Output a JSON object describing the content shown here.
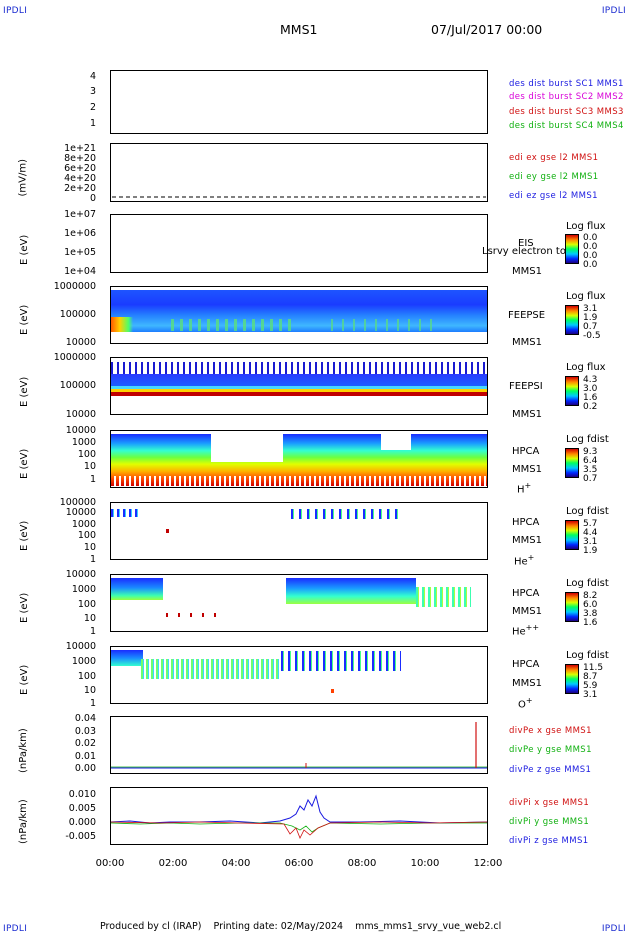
{
  "corner_label": "IPDLI",
  "header": {
    "mission": "MMS1",
    "datetime": "07/Jul/2017 00:00"
  },
  "footer": {
    "produced_by": "Produced by cl (IRAP)",
    "printing_date": "Printing date: 02/May/2024",
    "filename": "mms_mms1_srvy_vue_web2.cl"
  },
  "chart_data": [
    {
      "type": "line",
      "panel": "burst",
      "yticks": [
        "4",
        "3",
        "2",
        "1"
      ],
      "ylabel": "",
      "legend": [
        {
          "text": "des dist burst SC1 MMS1",
          "color": "#1a1ae0"
        },
        {
          "text": "des dist burst SC2 MMS2",
          "color": "#d800d8"
        },
        {
          "text": "des dist burst SC3 MMS3",
          "color": "#d01010"
        },
        {
          "text": "des dist burst SC4 MMS4",
          "color": "#10b010"
        }
      ]
    },
    {
      "type": "line",
      "panel": "edi",
      "ylabel": "(mV/m)",
      "yticks": [
        "1e+21",
        "8e+20",
        "6e+20",
        "4e+20",
        "2e+20",
        "0"
      ],
      "legend": [
        {
          "text": "edi ex gse l2 MMS1",
          "color": "#d01010"
        },
        {
          "text": "edi ey gse l2 MMS1",
          "color": "#10b010"
        },
        {
          "text": "edi ez gse l2 MMS1",
          "color": "#1a1ae0"
        }
      ]
    },
    {
      "type": "heatmap",
      "panel": "eis",
      "ylabel": "E (eV)",
      "yticks": [
        "1e+07",
        "1e+06",
        "1e+05",
        "1e+04"
      ],
      "label1": "EIS",
      "label2": "MMS1",
      "overlay": "Lsrvy electron to",
      "cb_title": "Log flux",
      "cb_ticks": [
        "0.0",
        "0.0",
        "0.0",
        "0.0"
      ]
    },
    {
      "type": "heatmap",
      "panel": "feepse",
      "ylabel": "E (eV)",
      "yticks": [
        "1000000",
        "100000",
        "10000"
      ],
      "label1": "FEEPSE",
      "label2": "MMS1",
      "cb_title": "Log flux",
      "cb_ticks": [
        "3.1",
        "1.9",
        "0.7",
        "-0.5"
      ]
    },
    {
      "type": "heatmap",
      "panel": "feepsi",
      "ylabel": "E (eV)",
      "yticks": [
        "1000000",
        "100000",
        "10000"
      ],
      "label1": "FEEPSI",
      "label2": "MMS1",
      "cb_title": "Log flux",
      "cb_ticks": [
        "4.3",
        "3.0",
        "1.6",
        "0.2"
      ]
    },
    {
      "type": "heatmap",
      "panel": "hpca-h",
      "ylabel": "E (eV)",
      "yticks": [
        "10000",
        "1000",
        "100",
        "10",
        "1"
      ],
      "label1": "HPCA",
      "label2": "MMS1",
      "species": "H",
      "charge": "+",
      "cb_title": "Log fdist",
      "cb_ticks": [
        "9.3",
        "6.4",
        "3.5",
        "0.7"
      ]
    },
    {
      "type": "heatmap",
      "panel": "hpca-he",
      "ylabel": "E (eV)",
      "yticks": [
        "100000",
        "10000",
        "1000",
        "100",
        "10",
        "1"
      ],
      "label1": "HPCA",
      "label2": "MMS1",
      "species": "He",
      "charge": "+",
      "cb_title": "Log fdist",
      "cb_ticks": [
        "5.7",
        "4.4",
        "3.1",
        "1.9"
      ]
    },
    {
      "type": "heatmap",
      "panel": "hpca-he2",
      "ylabel": "E (eV)",
      "yticks": [
        "10000",
        "1000",
        "100",
        "10",
        "1"
      ],
      "label1": "HPCA",
      "label2": "MMS1",
      "species": "He",
      "charge": "++",
      "cb_title": "Log fdist",
      "cb_ticks": [
        "8.2",
        "6.0",
        "3.8",
        "1.6"
      ]
    },
    {
      "type": "heatmap",
      "panel": "hpca-o",
      "ylabel": "E (eV)",
      "yticks": [
        "10000",
        "1000",
        "100",
        "10",
        "1"
      ],
      "label1": "HPCA",
      "label2": "MMS1",
      "species": "O",
      "charge": "+",
      "cb_title": "Log fdist",
      "cb_ticks": [
        "11.5",
        "8.7",
        "5.9",
        "3.1"
      ]
    },
    {
      "type": "line",
      "panel": "divpe",
      "ylabel": "(nPa/km)",
      "yticks": [
        "0.04",
        "0.03",
        "0.02",
        "0.01",
        "0.00"
      ],
      "legend": [
        {
          "text": "divPe x gse MMS1",
          "color": "#d01010"
        },
        {
          "text": "divPe y gse MMS1",
          "color": "#10b010"
        },
        {
          "text": "divPe z gse MMS1",
          "color": "#1a1ae0"
        }
      ]
    },
    {
      "type": "line",
      "panel": "divpi",
      "ylabel": "(nPa/km)",
      "yticks": [
        "0.010",
        "0.005",
        "0.000",
        "-0.005"
      ],
      "legend": [
        {
          "text": "divPi x gse MMS1",
          "color": "#d01010"
        },
        {
          "text": "divPi y gse MMS1",
          "color": "#10b010"
        },
        {
          "text": "divPi z gse MMS1",
          "color": "#1a1ae0"
        }
      ]
    }
  ],
  "xaxis": {
    "ticks": [
      "00:00",
      "02:00",
      "04:00",
      "06:00",
      "08:00",
      "10:00",
      "12:00"
    ]
  }
}
